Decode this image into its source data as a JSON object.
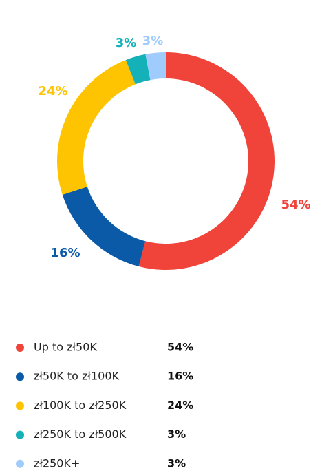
{
  "chart_data": {
    "type": "donut",
    "categories": [
      "Up to zł50K",
      "zł50K to zł100K",
      "zł100K to zł250K",
      "zł250K to zł500K",
      "zł250K+"
    ],
    "values": [
      54,
      16,
      24,
      3,
      3
    ],
    "value_labels": [
      "54%",
      "16%",
      "24%",
      "3%",
      "3%"
    ],
    "colors": [
      "#f0433a",
      "#0a5aa8",
      "#fec401",
      "#14b1b8",
      "#a0cbfd"
    ]
  }
}
